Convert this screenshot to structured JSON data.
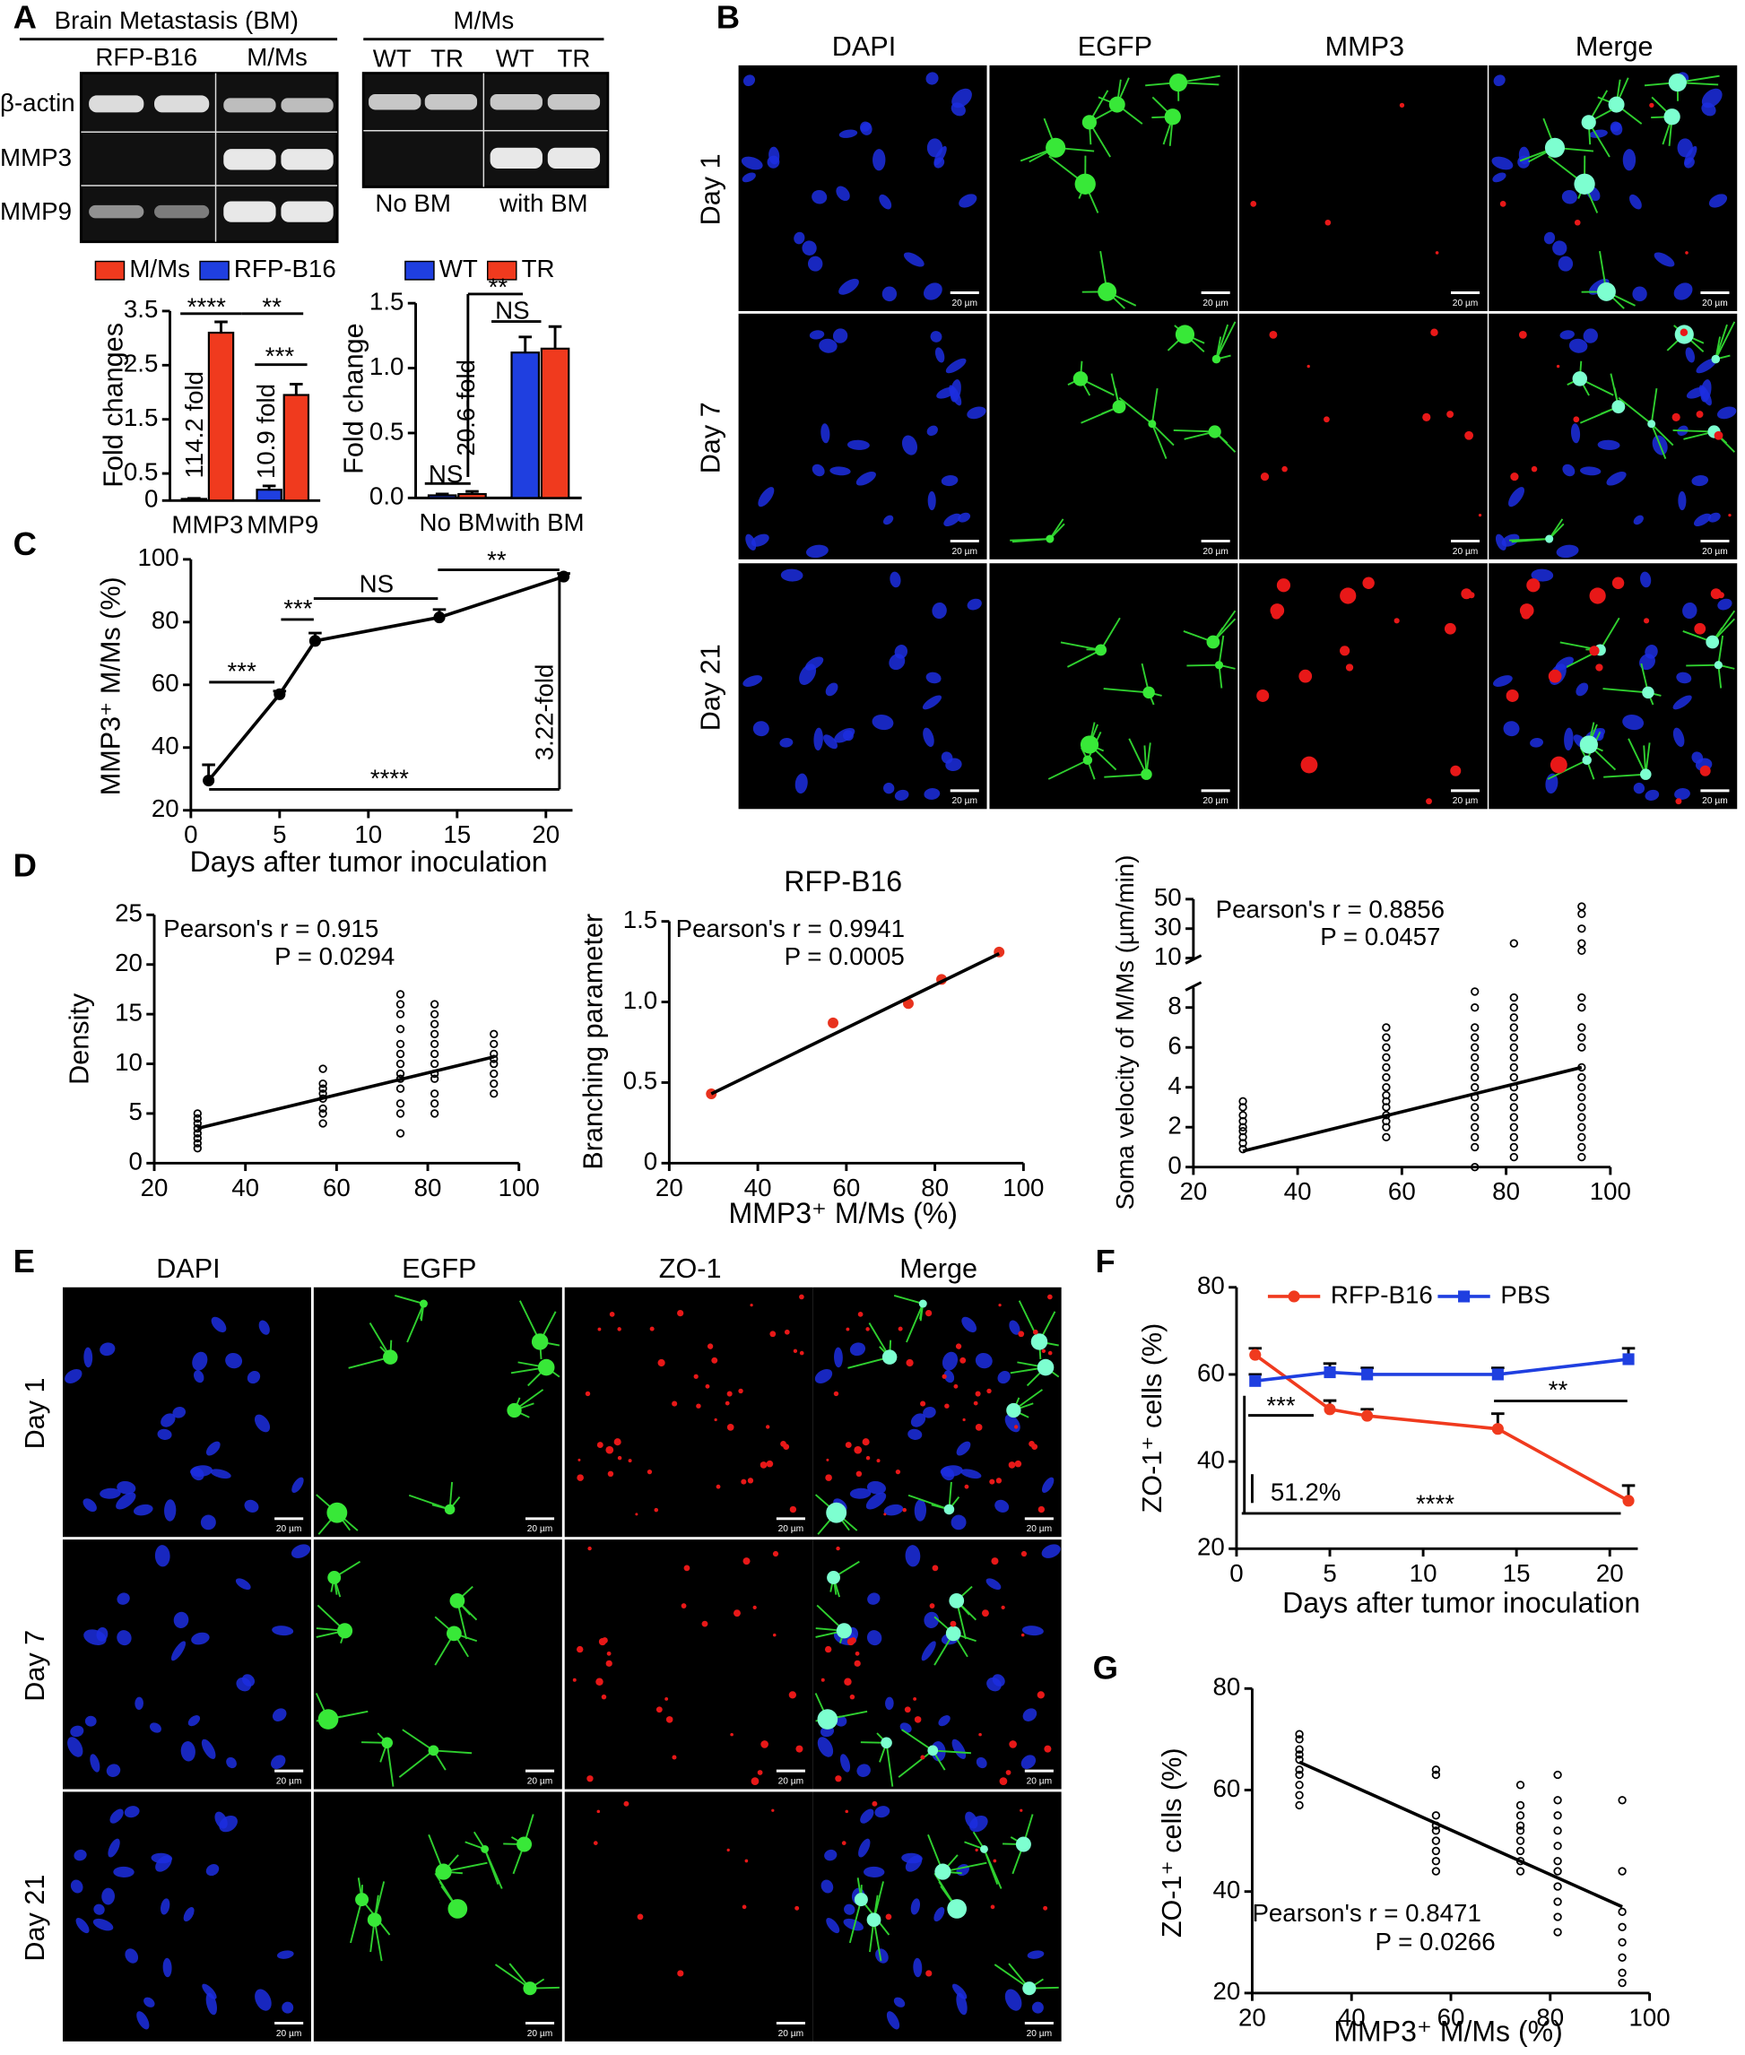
{
  "panel_labels": [
    "A",
    "B",
    "C",
    "D",
    "E",
    "F",
    "G"
  ],
  "gel": {
    "left": {
      "header": "Brain Metastasis (BM)",
      "groups": [
        "RFP-B16",
        "M/Ms"
      ],
      "rows": [
        "β-actin",
        "MMP3",
        "MMP9"
      ]
    },
    "right": {
      "header": "M/Ms",
      "lanes": [
        "WT",
        "TR",
        "WT",
        "TR"
      ],
      "groups": [
        "No BM",
        "with BM"
      ]
    }
  },
  "micrographs_B": {
    "columns": [
      "DAPI",
      "EGFP",
      "MMP3",
      "Merge"
    ],
    "rows": [
      "Day 1",
      "Day 7",
      "Day 21"
    ],
    "scale_bar": "20 µm"
  },
  "micrographs_E": {
    "columns": [
      "DAPI",
      "EGFP",
      "ZO-1",
      "Merge"
    ],
    "rows": [
      "Day 1",
      "Day 7",
      "Day 21"
    ],
    "scale_bar": "20 µm"
  },
  "chart_data": [
    {
      "type": "bar",
      "ylabel": "Fold changes",
      "categories": [
        "MMP3",
        "MMP9"
      ],
      "series": [
        {
          "name": "RFP-B16",
          "color": "#1f3fe0",
          "values": [
            0.03,
            0.2
          ],
          "errors": [
            0.01,
            0.07
          ]
        },
        {
          "name": "M/Ms",
          "color": "#f03a1e",
          "values": [
            3.1,
            1.95
          ],
          "errors": [
            0.2,
            0.2
          ]
        }
      ],
      "ylim": [
        0,
        3.5
      ],
      "yticks": [
        0,
        0.5,
        1.5,
        2.5,
        3.5
      ],
      "annotations": [
        "114.2 fold",
        "10.9 fold",
        "****",
        "**",
        "***"
      ]
    },
    {
      "type": "bar",
      "ylabel": "Fold change",
      "categories": [
        "No BM",
        "with BM"
      ],
      "series": [
        {
          "name": "WT",
          "color": "#1f3fe0",
          "values": [
            0.02,
            1.12
          ],
          "errors": [
            0.01,
            0.12
          ]
        },
        {
          "name": "TR",
          "color": "#f03a1e",
          "values": [
            0.03,
            1.15
          ],
          "errors": [
            0.02,
            0.17
          ]
        }
      ],
      "ylim": [
        0,
        1.5
      ],
      "yticks": [
        {
          "value": 0,
          "label": "0.0"
        },
        0.5,
        {
          "value": 1,
          "label": "1.0"
        },
        1.5
      ],
      "annotations": [
        "NS",
        "NS",
        "**",
        "20.6-fold"
      ]
    },
    {
      "type": "line",
      "xlabel": "Days after tumor inoculation",
      "ylabel": "MMP3⁺ M/Ms (%)",
      "x": [
        1,
        5,
        7,
        14,
        21
      ],
      "series": [
        {
          "color": "#000000",
          "values": [
            29.5,
            57,
            74,
            81.5,
            94.5
          ],
          "errors": [
            5,
            1,
            2.5,
            2.5,
            1
          ]
        }
      ],
      "xlim": [
        0,
        21.5
      ],
      "xticks": [
        0,
        5,
        10,
        15,
        20
      ],
      "ylim": [
        20,
        100
      ],
      "yticks": [
        20,
        40,
        60,
        80,
        100
      ],
      "annotations": [
        "***",
        "***",
        "NS",
        "**",
        "****",
        "3.22-fold"
      ]
    },
    {
      "type": "scatter",
      "ylabel": "Density",
      "color": "#000000",
      "filled": false,
      "x": [
        29.5,
        29.5,
        29.5,
        29.5,
        29.5,
        29.5,
        29.5,
        29.5,
        57,
        57,
        57,
        57,
        57,
        57,
        57,
        57,
        74,
        74,
        74,
        74,
        74,
        74,
        74,
        74,
        74,
        74,
        74,
        74,
        74,
        81.5,
        81.5,
        81.5,
        81.5,
        81.5,
        81.5,
        81.5,
        81.5,
        81.5,
        81.5,
        81.5,
        81.5,
        94.5,
        94.5,
        94.5,
        94.5,
        94.5,
        94.5,
        94.5,
        94.5
      ],
      "values": [
        1.5,
        2,
        2.5,
        3,
        3.5,
        4,
        4.5,
        5,
        4,
        5,
        5.5,
        6.5,
        7,
        7.5,
        8,
        9.5,
        3,
        5,
        6,
        7.5,
        8.5,
        9,
        10,
        11,
        12,
        13.5,
        15,
        16,
        17,
        5,
        6,
        7,
        8.5,
        9,
        10,
        11,
        12,
        13,
        14,
        15,
        16,
        7,
        8,
        9,
        10,
        10.5,
        11,
        12,
        13
      ],
      "fit": {
        "x": [
          29.5,
          94.5
        ],
        "y": [
          3.5,
          10.7
        ]
      },
      "xlim": [
        20,
        100
      ],
      "xticks": [
        20,
        40,
        60,
        80,
        100
      ],
      "ylim": [
        0,
        25
      ],
      "yticks": [
        0,
        5,
        10,
        15,
        20,
        25
      ],
      "annotations": [
        "Pearson's r = 0.915",
        "P = 0.0294"
      ]
    },
    {
      "type": "scatter",
      "title": "RFP-B16",
      "xlabel": "MMP3⁺ M/Ms (%)",
      "ylabel": "Branching parameter",
      "color": "#e8321e",
      "filled": true,
      "x": [
        29.5,
        57,
        74,
        81.5,
        94.5
      ],
      "values": [
        0.43,
        0.87,
        0.99,
        1.14,
        1.31
      ],
      "fit": {
        "x": [
          29.5,
          94.5
        ],
        "y": [
          0.43,
          1.3
        ]
      },
      "xlim": [
        20,
        100
      ],
      "xticks": [
        20,
        40,
        60,
        80,
        100
      ],
      "ylim": [
        0,
        1.5
      ],
      "yticks": [
        0,
        0.5,
        {
          "value": 1,
          "label": "1.0"
        },
        1.5
      ],
      "annotations": [
        "Pearson's r = 0.9941",
        "P = 0.0005"
      ]
    },
    {
      "type": "scatter",
      "ylabel": "Soma velocity of M/Ms (µm/min)",
      "color": "#000000",
      "filled": false,
      "x": [
        29.5,
        29.5,
        29.5,
        29.5,
        29.5,
        29.5,
        29.5,
        29.5,
        29.5,
        57,
        57,
        57,
        57,
        57,
        57,
        57,
        57,
        57,
        57,
        57,
        57,
        57,
        57,
        74,
        74,
        74,
        74,
        74,
        74,
        74,
        74,
        74,
        74,
        74,
        74,
        74,
        74,
        74,
        74,
        81.5,
        81.5,
        81.5,
        81.5,
        81.5,
        81.5,
        81.5,
        81.5,
        81.5,
        81.5,
        81.5,
        81.5,
        81.5,
        81.5,
        81.5,
        81.5,
        81.5,
        81.5,
        94.5,
        94.5,
        94.5,
        94.5,
        94.5,
        94.5,
        94.5,
        94.5,
        94.5,
        94.5,
        94.5,
        94.5,
        94.5,
        94.5,
        94.5,
        94.5,
        94.5,
        94.5,
        94.5,
        94.5
      ],
      "values": [
        0.9,
        1.2,
        1.5,
        1.8,
        2,
        2.3,
        2.6,
        3,
        3.3,
        1.5,
        2,
        2.3,
        2.6,
        3,
        3.3,
        3.6,
        4,
        4.5,
        5,
        5.5,
        6,
        6.5,
        7,
        0,
        1,
        1.5,
        2,
        2.5,
        3,
        3.5,
        4,
        4.5,
        5,
        5.5,
        6,
        6.5,
        7,
        8,
        8.8,
        0.5,
        1,
        1.5,
        2,
        2.5,
        3,
        3.5,
        4,
        4.5,
        5,
        5.5,
        6,
        6.5,
        7,
        7.5,
        8,
        8.5,
        20,
        0.5,
        1,
        1.5,
        2,
        2.5,
        3,
        3.5,
        4,
        4.5,
        5,
        6,
        6.5,
        7,
        8,
        8.5,
        15,
        20,
        30,
        40,
        45
      ],
      "fit": {
        "x": [
          29.5,
          94.5
        ],
        "y": [
          0.8,
          5
        ]
      },
      "xlim": [
        20,
        100
      ],
      "xticks": [
        20,
        40,
        60,
        80,
        100
      ],
      "ylim": [
        0,
        50
      ],
      "yticks": [
        0,
        2,
        4,
        6,
        8,
        10,
        30,
        50
      ],
      "y_break": [
        9,
        10
      ],
      "annotations": [
        "Pearson's r = 0.8856",
        "P = 0.0457"
      ]
    },
    {
      "type": "line",
      "xlabel": "Days after tumor inoculation",
      "ylabel": "ZO-1⁺ cells (%)",
      "x": [
        1,
        5,
        7,
        14,
        21
      ],
      "series": [
        {
          "name": "RFP-B16",
          "color": "#f03a1e",
          "marker": "circle",
          "values": [
            64.5,
            52,
            50.5,
            47.5,
            31
          ],
          "errors": [
            1.5,
            2,
            1.5,
            3.5,
            3.5
          ]
        },
        {
          "name": "PBS",
          "color": "#1f3fe0",
          "marker": "square",
          "values": [
            58.5,
            60.5,
            60,
            60,
            63.5
          ],
          "errors": [
            1.5,
            2,
            1.5,
            1.5,
            2.5
          ]
        }
      ],
      "xlim": [
        0,
        21.5
      ],
      "xticks": [
        0,
        5,
        10,
        15,
        20
      ],
      "ylim": [
        20,
        80
      ],
      "yticks": [
        20,
        40,
        60,
        80
      ],
      "annotations": [
        "***",
        "**",
        "****",
        "51.2%"
      ]
    },
    {
      "type": "scatter",
      "xlabel": "MMP3⁺ M/Ms (%)",
      "ylabel": "ZO-1⁺ cells (%)",
      "color": "#000000",
      "filled": false,
      "x": [
        29.5,
        29.5,
        29.5,
        29.5,
        29.5,
        29.5,
        29.5,
        29.5,
        29.5,
        29.5,
        57,
        57,
        57,
        57,
        57,
        57,
        57,
        57,
        57,
        74,
        74,
        74,
        74,
        74,
        74,
        74,
        74,
        74,
        81.5,
        81.5,
        81.5,
        81.5,
        81.5,
        81.5,
        81.5,
        81.5,
        81.5,
        81.5,
        81.5,
        94.5,
        94.5,
        94.5,
        94.5,
        94.5,
        94.5,
        94.5,
        94.5
      ],
      "values": [
        57,
        59,
        61,
        63,
        64,
        66,
        67,
        68,
        70,
        71,
        44,
        46,
        48,
        50,
        52,
        53,
        55,
        63,
        64,
        44,
        46,
        48,
        50,
        52,
        53,
        55,
        57,
        61,
        32,
        35,
        38,
        41,
        44,
        46,
        49,
        52,
        55,
        58,
        63,
        22,
        24,
        27,
        30,
        33,
        36,
        44,
        58
      ],
      "fit": {
        "x": [
          29.5,
          94.5
        ],
        "y": [
          65.5,
          37
        ]
      },
      "xlim": [
        20,
        100
      ],
      "xticks": [
        20,
        40,
        60,
        80,
        100
      ],
      "ylim": [
        20,
        80
      ],
      "yticks": [
        20,
        40,
        60,
        80
      ],
      "annotations": [
        "Pearson's r = 0.8471",
        "P = 0.0266"
      ]
    }
  ]
}
